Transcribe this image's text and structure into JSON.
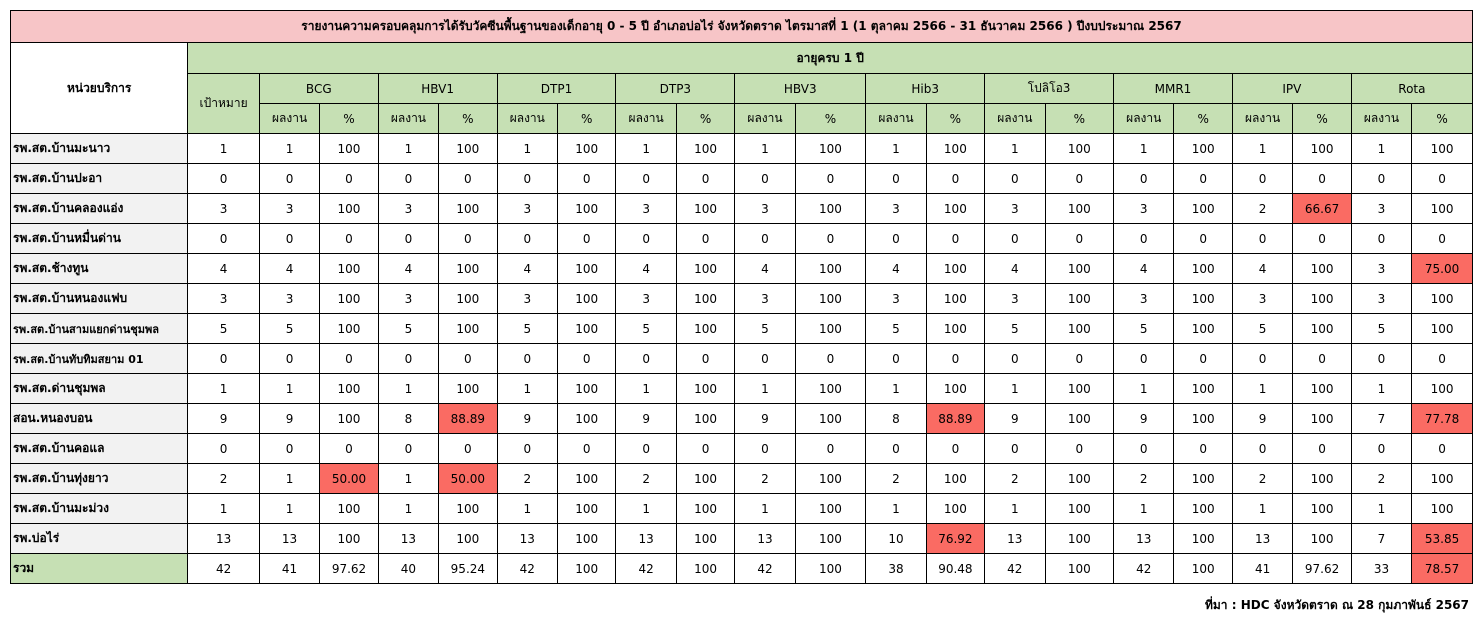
{
  "title": "รายงานความครอบคลุมการได้รับวัคซีนพื้นฐานของเด็กอายุ 0 - 5 ปี อำเภอบ่อไร่ จังหวัดตราด ไตรมาสที่ 1 (1 ตุลาคม 2566 - 31 ธันวาคม 2566 ) ปีงบประมาณ 2567",
  "headers": {
    "unit": "หน่วยบริการ",
    "age_group": "อายุครบ 1 ปี",
    "target": "เป้าหมาย",
    "work": "ผลงาน",
    "percent": "%"
  },
  "vaccines": [
    "BCG",
    "HBV1",
    "DTP1",
    "DTP3",
    "HBV3",
    "Hib3",
    "โปลิโอ3",
    "MMR1",
    "IPV",
    "Rota"
  ],
  "rows": [
    {
      "name": "รพ.สต.บ้านมะนาว",
      "target": "1",
      "cells": [
        [
          "1",
          "100"
        ],
        [
          "1",
          "100"
        ],
        [
          "1",
          "100"
        ],
        [
          "1",
          "100"
        ],
        [
          "1",
          "100"
        ],
        [
          "1",
          "100"
        ],
        [
          "1",
          "100"
        ],
        [
          "1",
          "100"
        ],
        [
          "1",
          "100"
        ],
        [
          "1",
          "100"
        ]
      ]
    },
    {
      "name": "รพ.สต.บ้านปะอา",
      "target": "0",
      "cells": [
        [
          "0",
          "0"
        ],
        [
          "0",
          "0"
        ],
        [
          "0",
          "0"
        ],
        [
          "0",
          "0"
        ],
        [
          "0",
          "0"
        ],
        [
          "0",
          "0"
        ],
        [
          "0",
          "0"
        ],
        [
          "0",
          "0"
        ],
        [
          "0",
          "0"
        ],
        [
          "0",
          "0"
        ]
      ]
    },
    {
      "name": "รพ.สต.บ้านคลองแอ่ง",
      "target": "3",
      "cells": [
        [
          "3",
          "100"
        ],
        [
          "3",
          "100"
        ],
        [
          "3",
          "100"
        ],
        [
          "3",
          "100"
        ],
        [
          "3",
          "100"
        ],
        [
          "3",
          "100"
        ],
        [
          "3",
          "100"
        ],
        [
          "3",
          "100"
        ],
        [
          "2",
          "66.67"
        ],
        [
          "3",
          "100"
        ]
      ]
    },
    {
      "name": "รพ.สต.บ้านหมื่นด่าน",
      "target": "0",
      "cells": [
        [
          "0",
          "0"
        ],
        [
          "0",
          "0"
        ],
        [
          "0",
          "0"
        ],
        [
          "0",
          "0"
        ],
        [
          "0",
          "0"
        ],
        [
          "0",
          "0"
        ],
        [
          "0",
          "0"
        ],
        [
          "0",
          "0"
        ],
        [
          "0",
          "0"
        ],
        [
          "0",
          "0"
        ]
      ]
    },
    {
      "name": "รพ.สต.ช้างทูน",
      "target": "4",
      "cells": [
        [
          "4",
          "100"
        ],
        [
          "4",
          "100"
        ],
        [
          "4",
          "100"
        ],
        [
          "4",
          "100"
        ],
        [
          "4",
          "100"
        ],
        [
          "4",
          "100"
        ],
        [
          "4",
          "100"
        ],
        [
          "4",
          "100"
        ],
        [
          "4",
          "100"
        ],
        [
          "3",
          "75.00"
        ]
      ]
    },
    {
      "name": "รพ.สต.บ้านหนองแฟบ",
      "target": "3",
      "cells": [
        [
          "3",
          "100"
        ],
        [
          "3",
          "100"
        ],
        [
          "3",
          "100"
        ],
        [
          "3",
          "100"
        ],
        [
          "3",
          "100"
        ],
        [
          "3",
          "100"
        ],
        [
          "3",
          "100"
        ],
        [
          "3",
          "100"
        ],
        [
          "3",
          "100"
        ],
        [
          "3",
          "100"
        ]
      ]
    },
    {
      "name": "รพ.สต.บ้านสามแยกด่านชุมพล",
      "target": "5",
      "cells": [
        [
          "5",
          "100"
        ],
        [
          "5",
          "100"
        ],
        [
          "5",
          "100"
        ],
        [
          "5",
          "100"
        ],
        [
          "5",
          "100"
        ],
        [
          "5",
          "100"
        ],
        [
          "5",
          "100"
        ],
        [
          "5",
          "100"
        ],
        [
          "5",
          "100"
        ],
        [
          "5",
          "100"
        ]
      ]
    },
    {
      "name": "รพ.สต.บ้านทับทิมสยาม 01",
      "target": "0",
      "cells": [
        [
          "0",
          "0"
        ],
        [
          "0",
          "0"
        ],
        [
          "0",
          "0"
        ],
        [
          "0",
          "0"
        ],
        [
          "0",
          "0"
        ],
        [
          "0",
          "0"
        ],
        [
          "0",
          "0"
        ],
        [
          "0",
          "0"
        ],
        [
          "0",
          "0"
        ],
        [
          "0",
          "0"
        ]
      ]
    },
    {
      "name": "รพ.สต.ด่านชุมพล",
      "target": "1",
      "cells": [
        [
          "1",
          "100"
        ],
        [
          "1",
          "100"
        ],
        [
          "1",
          "100"
        ],
        [
          "1",
          "100"
        ],
        [
          "1",
          "100"
        ],
        [
          "1",
          "100"
        ],
        [
          "1",
          "100"
        ],
        [
          "1",
          "100"
        ],
        [
          "1",
          "100"
        ],
        [
          "1",
          "100"
        ]
      ]
    },
    {
      "name": "สอน.หนองบอน",
      "target": "9",
      "cells": [
        [
          "9",
          "100"
        ],
        [
          "8",
          "88.89"
        ],
        [
          "9",
          "100"
        ],
        [
          "9",
          "100"
        ],
        [
          "9",
          "100"
        ],
        [
          "8",
          "88.89"
        ],
        [
          "9",
          "100"
        ],
        [
          "9",
          "100"
        ],
        [
          "9",
          "100"
        ],
        [
          "7",
          "77.78"
        ]
      ]
    },
    {
      "name": "รพ.สต.บ้านคอแล",
      "target": "0",
      "cells": [
        [
          "0",
          "0"
        ],
        [
          "0",
          "0"
        ],
        [
          "0",
          "0"
        ],
        [
          "0",
          "0"
        ],
        [
          "0",
          "0"
        ],
        [
          "0",
          "0"
        ],
        [
          "0",
          "0"
        ],
        [
          "0",
          "0"
        ],
        [
          "0",
          "0"
        ],
        [
          "0",
          "0"
        ]
      ]
    },
    {
      "name": "รพ.สต.บ้านทุ่งยาว",
      "target": "2",
      "cells": [
        [
          "1",
          "50.00"
        ],
        [
          "1",
          "50.00"
        ],
        [
          "2",
          "100"
        ],
        [
          "2",
          "100"
        ],
        [
          "2",
          "100"
        ],
        [
          "2",
          "100"
        ],
        [
          "2",
          "100"
        ],
        [
          "2",
          "100"
        ],
        [
          "2",
          "100"
        ],
        [
          "2",
          "100"
        ]
      ]
    },
    {
      "name": "รพ.สต.บ้านมะม่วง",
      "target": "1",
      "cells": [
        [
          "1",
          "100"
        ],
        [
          "1",
          "100"
        ],
        [
          "1",
          "100"
        ],
        [
          "1",
          "100"
        ],
        [
          "1",
          "100"
        ],
        [
          "1",
          "100"
        ],
        [
          "1",
          "100"
        ],
        [
          "1",
          "100"
        ],
        [
          "1",
          "100"
        ],
        [
          "1",
          "100"
        ]
      ]
    },
    {
      "name": "รพ.บ่อไร่",
      "target": "13",
      "cells": [
        [
          "13",
          "100"
        ],
        [
          "13",
          "100"
        ],
        [
          "13",
          "100"
        ],
        [
          "13",
          "100"
        ],
        [
          "13",
          "100"
        ],
        [
          "10",
          "76.92"
        ],
        [
          "13",
          "100"
        ],
        [
          "13",
          "100"
        ],
        [
          "13",
          "100"
        ],
        [
          "7",
          "53.85"
        ]
      ]
    },
    {
      "name": "รวม",
      "target": "42",
      "cells": [
        [
          "41",
          "97.62"
        ],
        [
          "40",
          "95.24"
        ],
        [
          "42",
          "100"
        ],
        [
          "42",
          "100"
        ],
        [
          "42",
          "100"
        ],
        [
          "38",
          "90.48"
        ],
        [
          "42",
          "100"
        ],
        [
          "42",
          "100"
        ],
        [
          "41",
          "97.62"
        ],
        [
          "33",
          "78.57"
        ]
      ]
    }
  ],
  "source": "ที่มา : HDC จังหวัดตราด ณ 28 กุมภาพันธ์  2567",
  "colors": {
    "title_bg": "#f7c5c7",
    "header_bg": "#c6e0b4",
    "unit_bg": "#f2f2f2",
    "below_target_bg": "#fa6b63"
  }
}
